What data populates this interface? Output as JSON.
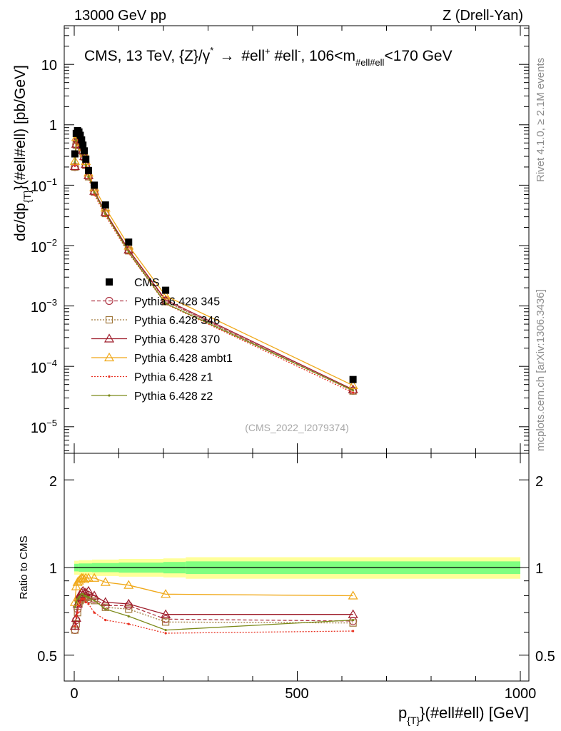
{
  "header": {
    "left": "13000 GeV pp",
    "right": "Z (Drell-Yan)"
  },
  "side": {
    "rivet": "Rivet 4.1.0, ≥ 2.1M events",
    "mcplots": "mcplots.cern.ch [arXiv:1306.3436]"
  },
  "colors": {
    "data": "#000000",
    "p345": "#b03a48",
    "p346": "#a0783c",
    "p370": "#9e1c2a",
    "ambt1": "#f0a818",
    "z1": "#e83020",
    "z2": "#7c8a1a",
    "band_outer": "#ffff99",
    "band_inner": "#80ff80"
  },
  "chart_data": [
    {
      "type": "scatter",
      "title": "CMS, 13 TeV, {Z}/γ* → #ell⁺ #ell⁻, 106<m#ell#ell<170 GeV",
      "title_parts": {
        "a": "CMS, 13 TeV, {Z}/γ",
        "star": "*",
        "arrow": "→",
        "b": "#ell",
        "plus": "+",
        "c": " #ell",
        "minus": "-",
        "d": ", 106<m",
        "sub": "#ell#ell",
        "e": "<170 GeV"
      },
      "ylabel_parts": {
        "a": "dσ/dp",
        "sub": "{T}",
        "b": "}(#ell#ell) [pb/GeV]"
      },
      "yscale": "log",
      "xlim": [
        -20,
        1010
      ],
      "ylim": [
        4.2e-06,
        45
      ],
      "ytick_labels": {
        "y1": "10",
        "y0": "1",
        "m1b": "10",
        "m1e": "−1",
        "m2b": "10",
        "m2e": "−2",
        "m3b": "10",
        "m3e": "−3",
        "m4b": "10",
        "m4e": "−4",
        "m5b": "10",
        "m5e": "−5"
      },
      "watermark": "(CMS_2022_I2079374)",
      "legend_position": "middle-left",
      "x": [
        1.5,
        4.5,
        7.5,
        10.5,
        13.5,
        16.5,
        19.5,
        22.5,
        26,
        32,
        45,
        70,
        122,
        205,
        625
      ],
      "series": [
        {
          "name": "CMS",
          "key": "data",
          "marker": "square",
          "values": [
            0.33,
            0.72,
            0.8,
            0.76,
            0.67,
            0.56,
            0.46,
            0.37,
            0.27,
            0.175,
            0.1,
            0.047,
            0.0114,
            0.00182,
            6.05e-05
          ]
        },
        {
          "name": "Pythia 6.428 345",
          "key": "p345",
          "marker": "circle",
          "dash": "5,3",
          "values": [
            0.2,
            0.47,
            0.58,
            0.58,
            0.52,
            0.44,
            0.36,
            0.29,
            0.215,
            0.14,
            0.078,
            0.0345,
            0.0084,
            0.00121,
            3.95e-05
          ]
        },
        {
          "name": "Pythia 6.428 346",
          "key": "p346",
          "marker": "square-open",
          "dash": "2,2",
          "values": [
            0.2,
            0.46,
            0.56,
            0.57,
            0.51,
            0.44,
            0.36,
            0.29,
            0.213,
            0.138,
            0.077,
            0.034,
            0.0082,
            0.00118,
            3.91e-05
          ]
        },
        {
          "name": "Pythia 6.428 370",
          "key": "p370",
          "marker": "triangle",
          "dash": "",
          "values": [
            0.205,
            0.48,
            0.6,
            0.6,
            0.54,
            0.46,
            0.38,
            0.3,
            0.222,
            0.145,
            0.08,
            0.0355,
            0.0085,
            0.00126,
            4.13e-05
          ]
        },
        {
          "name": "Pythia 6.428 ambt1",
          "key": "ambt1",
          "marker": "triangle",
          "dash": "",
          "values": [
            0.25,
            0.62,
            0.72,
            0.69,
            0.61,
            0.51,
            0.42,
            0.34,
            0.248,
            0.16,
            0.091,
            0.042,
            0.0099,
            0.00147,
            4.83e-05
          ]
        },
        {
          "name": "Pythia 6.428 z1",
          "key": "z1",
          "marker": "dot",
          "dash": "2,2",
          "values": [
            0.21,
            0.49,
            0.57,
            0.56,
            0.51,
            0.44,
            0.36,
            0.29,
            0.205,
            0.131,
            0.07,
            0.031,
            0.0075,
            0.00108,
            3.67e-05
          ]
        },
        {
          "name": "Pythia 6.428 z2",
          "key": "z2",
          "marker": "dot",
          "dash": "",
          "values": [
            0.24,
            0.55,
            0.62,
            0.6,
            0.54,
            0.46,
            0.38,
            0.3,
            0.215,
            0.138,
            0.076,
            0.0335,
            0.0078,
            0.0011,
            4.01e-05
          ]
        }
      ],
      "legend": [
        "CMS",
        "Pythia 6.428 345",
        "Pythia 6.428 346",
        "Pythia 6.428 370",
        "Pythia 6.428 ambt1",
        "Pythia 6.428 z1",
        "Pythia 6.428 z2"
      ]
    },
    {
      "type": "line",
      "ylabel": "Ratio to CMS",
      "xlabel_parts": {
        "a": "p",
        "sub": "{T}",
        "b": "}(#ell#ell) [GeV]"
      },
      "yscale": "log",
      "ylim": [
        0.4,
        2.4
      ],
      "ytick_labels": {
        "t05": "0.5",
        "t1": "1",
        "t2": "2"
      },
      "xtick_labels": {
        "t0": "0",
        "t500": "500",
        "t1000": "1000"
      },
      "reference": 1,
      "band": {
        "x_edges": [
          0,
          10,
          40,
          100,
          200,
          250,
          1000
        ],
        "outer": [
          0.055,
          0.06,
          0.065,
          0.07,
          0.075,
          0.085,
          0.085
        ],
        "inner": [
          0.03,
          0.033,
          0.036,
          0.04,
          0.045,
          0.05,
          0.05
        ]
      },
      "x": [
        1.5,
        4.5,
        7.5,
        10.5,
        13.5,
        16.5,
        19.5,
        22.5,
        26,
        32,
        45,
        70,
        122,
        205,
        625
      ],
      "series": [
        {
          "key": "p345",
          "marker": "circle",
          "dash": "5,3",
          "values": [
            0.61,
            0.66,
            0.72,
            0.76,
            0.78,
            0.79,
            0.79,
            0.79,
            0.79,
            0.78,
            0.78,
            0.74,
            0.74,
            0.665,
            0.655
          ]
        },
        {
          "key": "p346",
          "marker": "square-open",
          "dash": "2,2",
          "values": [
            0.61,
            0.64,
            0.7,
            0.75,
            0.77,
            0.78,
            0.78,
            0.78,
            0.79,
            0.79,
            0.77,
            0.73,
            0.72,
            0.65,
            0.645
          ]
        },
        {
          "key": "p370",
          "marker": "triangle",
          "dash": "",
          "values": [
            0.63,
            0.67,
            0.75,
            0.79,
            0.81,
            0.82,
            0.83,
            0.82,
            0.82,
            0.83,
            0.8,
            0.76,
            0.75,
            0.69,
            0.69
          ]
        },
        {
          "key": "ambt1",
          "marker": "triangle",
          "dash": "",
          "values": [
            0.76,
            0.86,
            0.89,
            0.9,
            0.91,
            0.92,
            0.92,
            0.91,
            0.92,
            0.92,
            0.92,
            0.89,
            0.87,
            0.81,
            0.8
          ]
        },
        {
          "key": "z1",
          "marker": "dot",
          "dash": "2,2",
          "values": [
            0.63,
            0.68,
            0.7,
            0.74,
            0.76,
            0.78,
            0.78,
            0.78,
            0.76,
            0.75,
            0.7,
            0.66,
            0.64,
            0.595,
            0.605
          ]
        },
        {
          "key": "z2",
          "marker": "dot",
          "dash": "",
          "values": [
            0.73,
            0.76,
            0.78,
            0.79,
            0.8,
            0.81,
            0.81,
            0.8,
            0.8,
            0.79,
            0.77,
            0.72,
            0.68,
            0.61,
            0.66
          ]
        }
      ]
    }
  ]
}
